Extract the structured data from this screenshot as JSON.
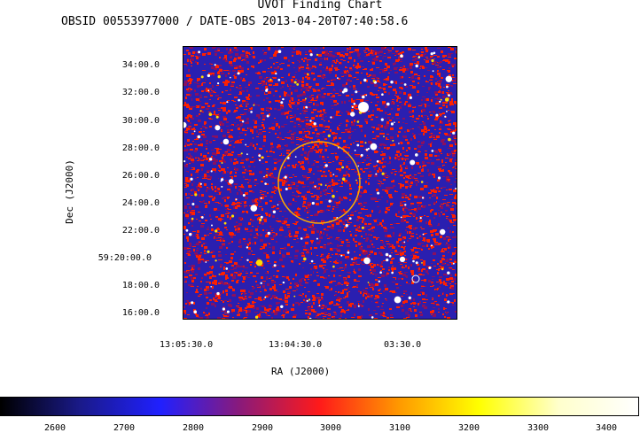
{
  "header": {
    "title": "UVOT Finding Chart",
    "subtitle": "OBSID 00553977000 / DATE-OBS 2013-04-20T07:40:58.6"
  },
  "axes": {
    "y_title": "Dec (J2000)",
    "x_title": "RA (J2000)",
    "y_ticks": [
      "34:00.0",
      "32:00.0",
      "30:00.0",
      "28:00.0",
      "26:00.0",
      "24:00.0",
      "22:00.0",
      "59:20:00.0",
      "18:00.0",
      "16:00.0"
    ],
    "x_ticks": [
      "13:05:30.0",
      "13:04:30.0",
      "03:30.0"
    ]
  },
  "colorbar": {
    "labels": [
      "2600",
      "2700",
      "2800",
      "2900",
      "3000",
      "3100",
      "3200",
      "3300",
      "3400"
    ],
    "colors": [
      "#000000",
      "#1a1a8a",
      "#2020ff",
      "#8a1a7a",
      "#ff1a1a",
      "#ff9900",
      "#ffff00",
      "#ffffcc",
      "#ffffff"
    ]
  },
  "image": {
    "colors": {
      "blue": "#2a1fb0",
      "red": "#ff2000",
      "purple": "#8a1060",
      "white": "#ffffff",
      "yellow": "#ffdd00"
    },
    "marker_color": "#ffaa00"
  }
}
